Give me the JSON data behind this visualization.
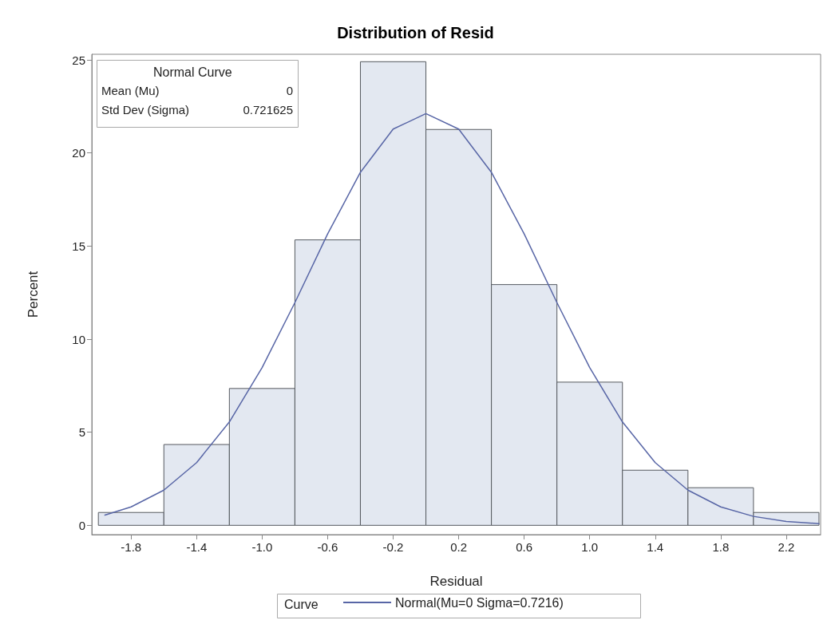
{
  "chart_data": {
    "type": "histogram",
    "title": "Distribution of Resid",
    "xlabel": "Residual",
    "ylabel": "Percent",
    "legend_title": "Curve",
    "bins": [
      -2.0,
      -1.6,
      -1.2,
      -0.8,
      -0.4,
      0.0,
      0.4,
      0.8,
      1.2,
      1.6,
      2.0,
      2.4
    ],
    "values": [
      0.69,
      4.34,
      7.35,
      15.33,
      24.9,
      21.26,
      12.93,
      7.69,
      2.96,
      2.02,
      0.69
    ],
    "color": "#e3e8f1",
    "series": [
      {
        "type": "line",
        "name": "Normal(Mu=0 Sigma=0.7216)",
        "color": "#5866a6",
        "x": [
          -1.96,
          -1.8,
          -1.6,
          -1.4,
          -1.2,
          -1.0,
          -0.8,
          -0.6,
          -0.4,
          -0.2,
          0.0,
          0.2,
          0.4,
          0.6,
          0.8,
          1.0,
          1.2,
          1.4,
          1.6,
          1.8,
          2.0,
          2.2,
          2.4
        ],
        "values": [
          0.55,
          0.99,
          1.89,
          3.37,
          5.55,
          8.47,
          11.96,
          15.65,
          18.96,
          21.28,
          22.11,
          21.28,
          18.96,
          15.65,
          11.96,
          8.47,
          5.55,
          3.37,
          1.89,
          0.99,
          0.48,
          0.21,
          0.09
        ]
      }
    ],
    "annotations": [
      "Normal Curve",
      "Mean (Mu)",
      "0",
      "Std Dev (Sigma)",
      "0.721625"
    ],
    "xlim": [
      -2.04,
      2.41
    ],
    "ylim": [
      -0.5,
      25.3
    ],
    "xticks": [
      -1.8,
      -1.4,
      {
        "value": -1,
        "label": "-1.0"
      },
      -0.6,
      -0.2,
      0.2,
      0.6,
      {
        "value": 1,
        "label": "1.0"
      },
      1.4,
      1.8,
      2.2
    ],
    "yticks": [
      0,
      5,
      10,
      15,
      20,
      25
    ],
    "grid": false,
    "legend": "bottom",
    "marker": "none",
    "line_style": "solid"
  }
}
